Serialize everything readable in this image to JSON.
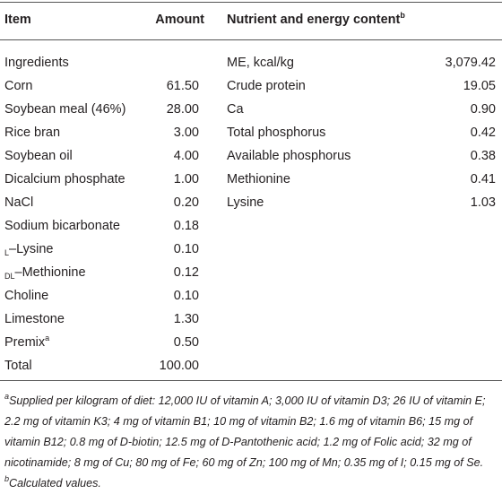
{
  "table": {
    "header": [
      "Item",
      "Amount",
      "Nutrient and energy content"
    ],
    "header_note": "b",
    "section_label": "Ingredients",
    "ingredients": [
      {
        "item": "Corn",
        "amount": "61.50"
      },
      {
        "item": "Soybean meal (46%)",
        "amount": "28.00"
      },
      {
        "item": "Rice bran",
        "amount": "3.00"
      },
      {
        "item": "Soybean oil",
        "amount": "4.00"
      },
      {
        "item": "Dicalcium phosphate",
        "amount": "1.00"
      },
      {
        "item": "NaCl",
        "amount": "0.20"
      },
      {
        "item": "Sodium bicarbonate",
        "amount": "0.18"
      },
      {
        "prefix": "L",
        "item": "–Lysine",
        "amount": "0.10"
      },
      {
        "prefix": "DL",
        "item": "–Methionine",
        "amount": "0.12"
      },
      {
        "item": "Choline",
        "amount": "0.10"
      },
      {
        "item": "Limestone",
        "amount": "1.30"
      },
      {
        "item": "Premix",
        "note": "a",
        "amount": "0.50"
      },
      {
        "item": "Total",
        "amount": "100.00"
      }
    ],
    "nutrients": [
      {
        "item": "ME, kcal/kg",
        "value": "3,079.42"
      },
      {
        "item": "Crude protein",
        "value": "19.05"
      },
      {
        "item": "Ca",
        "value": "0.90"
      },
      {
        "item": "Total phosphorus",
        "value": "0.42"
      },
      {
        "item": "Available phosphorus",
        "value": "0.38"
      },
      {
        "item": "Methionine",
        "value": "0.41"
      },
      {
        "item": "Lysine",
        "value": "1.03"
      }
    ]
  },
  "footnote": {
    "mark_a": "a",
    "text_a": "Supplied per kilogram of diet: 12,000 IU of vitamin A; 3,000 IU of vitamin D3; 26 IU of vitamin E; 2.2 mg of vitamin K3; 4 mg of vitamin B1; 10 mg of vitamin B2; 1.6 mg of vitamin B6; 15 mg of vitamin B12; 0.8 mg of D-biotin; 12.5 mg of D-Pantothenic acid; 1.2 mg of Folic acid; 32 mg of nicotinamide; 8 mg of Cu; 80 mg of Fe; 60 mg of Zn; 100 mg of Mn; 0.35 mg of I; 0.15 mg of Se.",
    "mark_b": "b",
    "text_b": "Calculated values."
  }
}
